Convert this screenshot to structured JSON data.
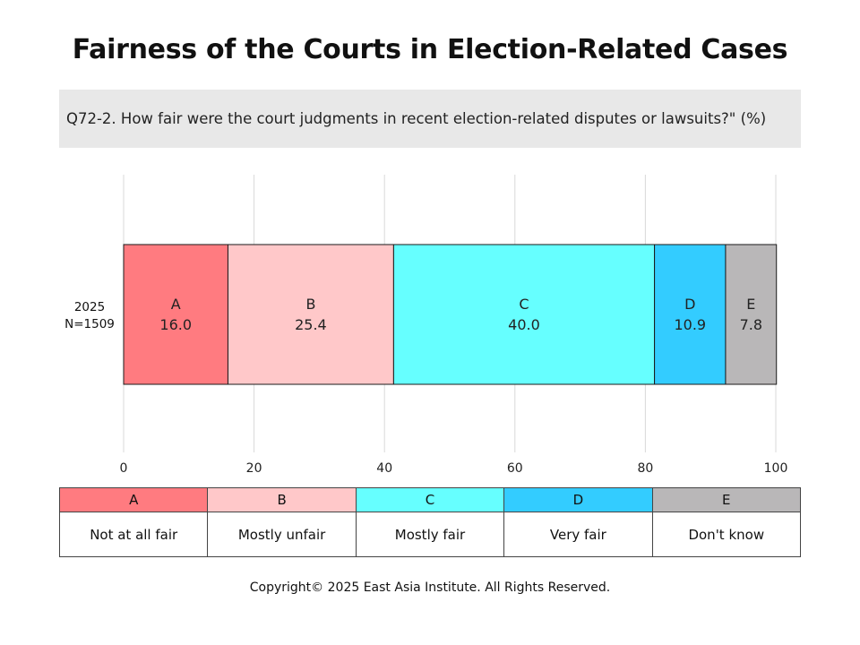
{
  "title": "Fairness of the Courts in Election-Related Cases",
  "question": "Q72-2. How fair were the court judgments in recent election-related disputes or lawsuits?\" (%)",
  "chart_data": {
    "type": "bar",
    "orientation": "horizontal-stacked-100",
    "categories": [
      "2025\nN=1509"
    ],
    "row_label_lines": [
      "2025",
      "N=1509"
    ],
    "series": [
      {
        "name": "A",
        "label": "Not at all fair",
        "values": [
          16.0
        ],
        "color": "#ff7b80"
      },
      {
        "name": "B",
        "label": "Mostly unfair",
        "values": [
          25.4
        ],
        "color": "#ffc8c9"
      },
      {
        "name": "C",
        "label": "Mostly fair",
        "values": [
          40.0
        ],
        "color": "#66ffff"
      },
      {
        "name": "D",
        "label": "Very fair",
        "values": [
          10.9
        ],
        "color": "#33ccff"
      },
      {
        "name": "E",
        "label": "Don't know",
        "values": [
          7.8
        ],
        "color": "#b9b7b8"
      }
    ],
    "xlim": [
      0,
      100
    ],
    "x_ticks": [
      "0",
      "20",
      "40",
      "60",
      "80",
      "100"
    ],
    "grid": "vertical"
  },
  "legend": {
    "keys": [
      "A",
      "B",
      "C",
      "D",
      "E"
    ],
    "labels": [
      "Not at all fair",
      "Mostly unfair",
      "Mostly fair",
      "Very fair",
      "Don't know"
    ],
    "colors": [
      "#ff7b80",
      "#ffc8c9",
      "#66ffff",
      "#33ccff",
      "#b9b7b8"
    ]
  },
  "copyright": "Copyright© 2025 East Asia Institute. All Rights Reserved."
}
